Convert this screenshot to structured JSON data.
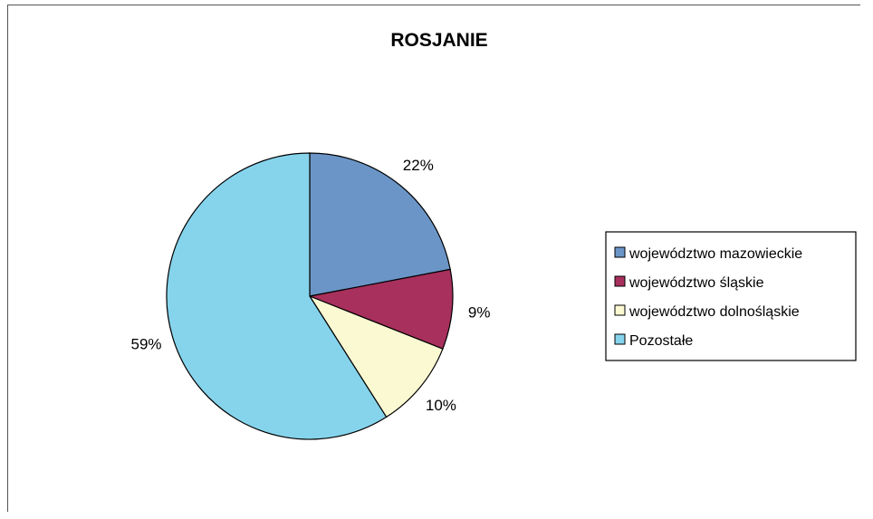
{
  "chart_data": {
    "type": "pie",
    "title": "ROSJANIE",
    "start_angle_deg": 0,
    "direction": "clockwise",
    "slices": [
      {
        "label": "województwo mazowieckie",
        "value": 22,
        "display": "22%",
        "color": "#6b95c7"
      },
      {
        "label": "województwo śląskie",
        "value": 9,
        "display": "9%",
        "color": "#a8305c"
      },
      {
        "label": "województwo dolnośląskie",
        "value": 10,
        "display": "10%",
        "color": "#fbf9d2"
      },
      {
        "label": "Pozostałe",
        "value": 59,
        "display": "59%",
        "color": "#86d4ec"
      }
    ],
    "legend_position": "right"
  }
}
